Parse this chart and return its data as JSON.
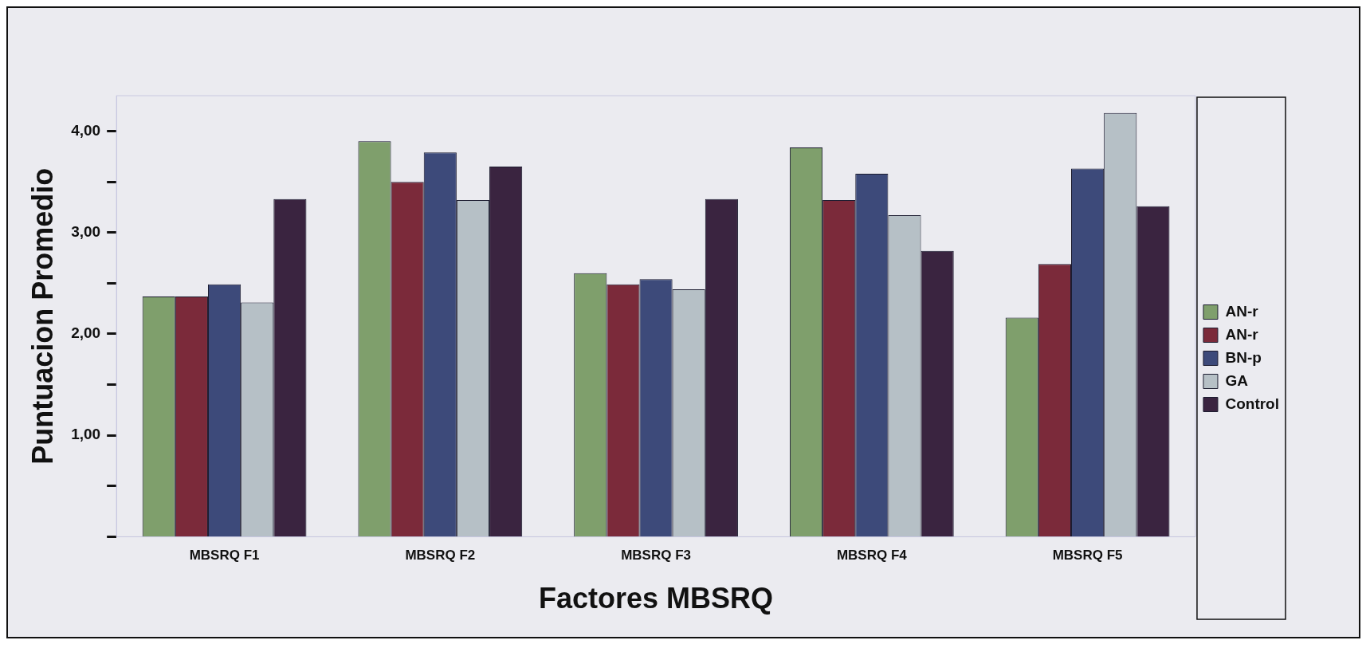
{
  "chart_data": {
    "type": "bar",
    "xlabel": "Factores MBSRQ",
    "ylabel": "Puntuacion Promedio",
    "categories": [
      "MBSRQ F1",
      "MBSRQ F2",
      "MBSRQ F3",
      "MBSRQ F4",
      "MBSRQ F5"
    ],
    "series": [
      {
        "name": "AN-r",
        "color": "#7f9f6c",
        "values": [
          2.37,
          3.9,
          2.6,
          3.84,
          2.16
        ]
      },
      {
        "name": "AN-r",
        "color": "#7b2a3a",
        "values": [
          2.37,
          3.5,
          2.49,
          3.32,
          2.69
        ]
      },
      {
        "name": "BN-p",
        "color": "#3d4a7a",
        "values": [
          2.49,
          3.79,
          2.54,
          3.58,
          3.63
        ]
      },
      {
        "name": "GA",
        "color": "#b6c0c6",
        "values": [
          2.31,
          3.32,
          2.44,
          3.17,
          4.18
        ]
      },
      {
        "name": "Control",
        "color": "#3a2440",
        "values": [
          3.33,
          3.65,
          3.33,
          2.82,
          3.26
        ]
      }
    ],
    "ylim": [
      0,
      4.35
    ],
    "yticks": [
      {
        "value": 0,
        "label": null
      },
      {
        "value": 0.5,
        "label": null
      },
      {
        "value": 1,
        "label": "1,00"
      },
      {
        "value": 1.5,
        "label": null
      },
      {
        "value": 2,
        "label": "2,00"
      },
      {
        "value": 2.5,
        "label": null
      },
      {
        "value": 3,
        "label": "3,00"
      },
      {
        "value": 3.5,
        "label": null
      },
      {
        "value": 4,
        "label": "4,00"
      }
    ],
    "grid": false,
    "legend": "right"
  }
}
